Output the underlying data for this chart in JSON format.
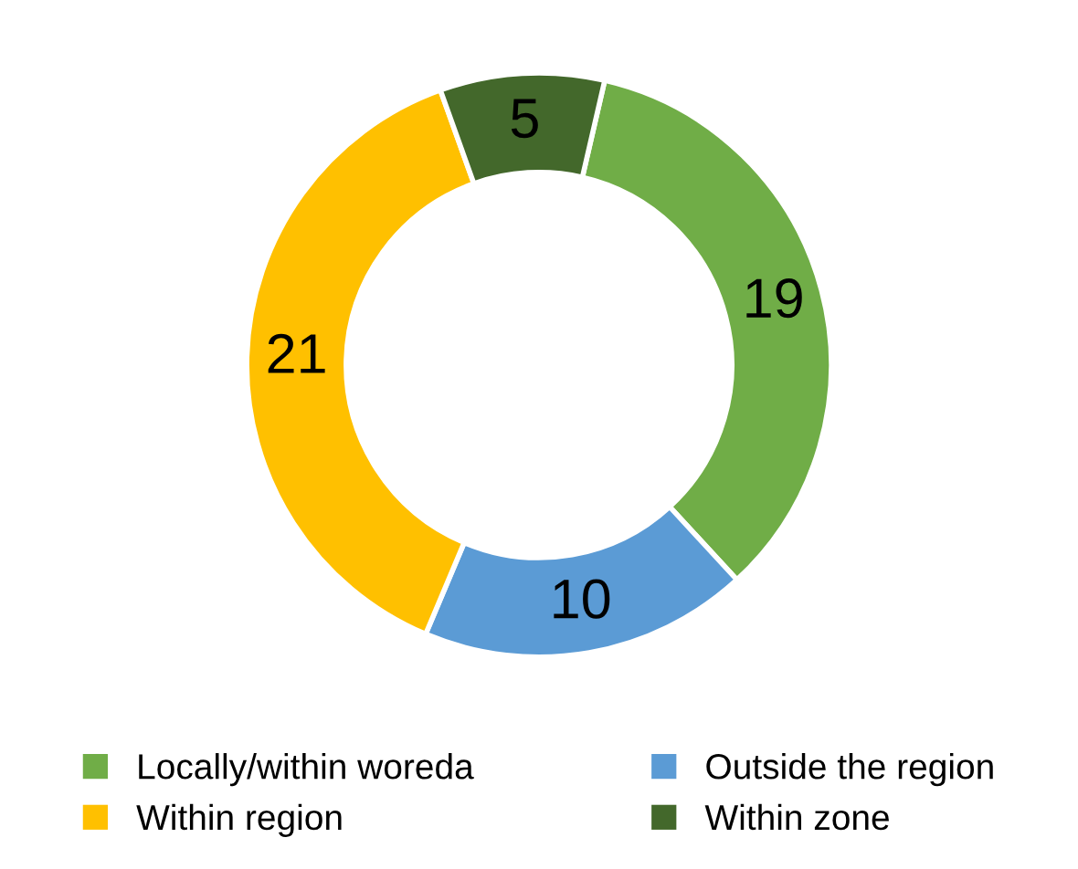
{
  "chart_data": {
    "type": "donut",
    "categories": [
      "Locally/within woreda",
      "Outside the region",
      "Within region",
      "Within zone"
    ],
    "values": [
      19,
      10,
      21,
      5
    ],
    "colors": [
      "#70ad47",
      "#5b9bd5",
      "#ffc000",
      "#43682b"
    ],
    "data_labels": true,
    "legend": "bottom"
  }
}
